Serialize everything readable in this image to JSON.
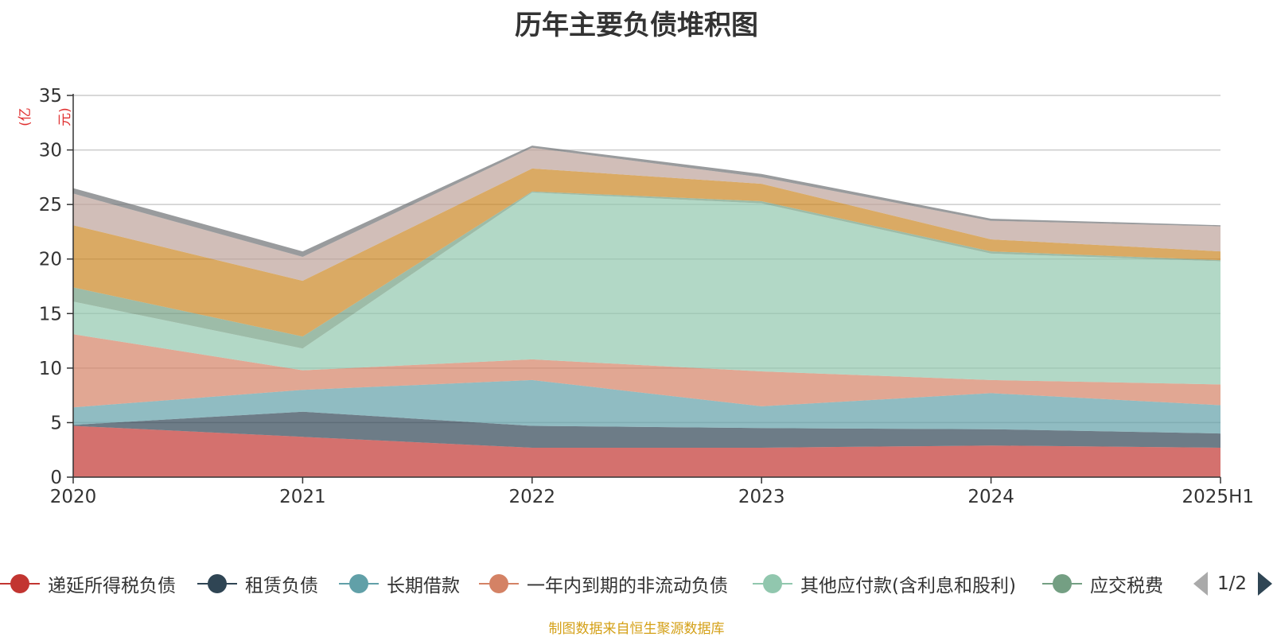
{
  "chart_data": {
    "type": "area",
    "title": "历年主要负债堆积图",
    "unit_label": "(亿元)",
    "categories": [
      "2020",
      "2021",
      "2022",
      "2023",
      "2024",
      "2025H1"
    ],
    "ylim": [
      0,
      35
    ],
    "y_ticks": [
      "0",
      "5",
      "10",
      "15",
      "20",
      "25",
      "30",
      "35"
    ],
    "grid": true,
    "stacked": true,
    "series": [
      {
        "name": "递延所得税负债",
        "color": "#c23531",
        "values": [
          4.7,
          3.7,
          2.7,
          2.7,
          2.9,
          2.7
        ]
      },
      {
        "name": "租赁负债",
        "color": "#2f4554",
        "values": [
          0.1,
          2.3,
          2.0,
          1.8,
          1.5,
          1.3
        ]
      },
      {
        "name": "长期借款",
        "color": "#61a0a8",
        "values": [
          1.6,
          2.0,
          4.2,
          2.0,
          3.3,
          2.6
        ]
      },
      {
        "name": "一年内到期的非流动负债",
        "color": "#d48265",
        "values": [
          6.7,
          1.8,
          1.9,
          3.2,
          1.2,
          1.9
        ]
      },
      {
        "name": "其他应付款(含利息和股利)",
        "color": "#91c7ae",
        "values": [
          3.0,
          2.0,
          15.3,
          15.4,
          11.6,
          11.3
        ]
      },
      {
        "name": "应交税费",
        "color": "#749f83",
        "values": [
          1.3,
          1.1,
          0.1,
          0.2,
          0.2,
          0.1
        ]
      },
      {
        "name": "",
        "color": "#ca8622",
        "values": [
          5.7,
          5.1,
          2.1,
          1.6,
          1.1,
          0.8
        ]
      },
      {
        "name": "",
        "color": "#bda29a",
        "values": [
          2.9,
          2.2,
          1.9,
          0.6,
          1.7,
          2.3
        ]
      },
      {
        "name": "",
        "color": "#6e7074",
        "values": [
          0.5,
          0.5,
          0.2,
          0.3,
          0.2,
          0.1
        ]
      }
    ]
  },
  "legend": {
    "items": [
      "递延所得税负债",
      "租赁负债",
      "长期借款",
      "一年内到期的非流动负债",
      "其他应付款(含利息和股利)",
      "应交税费"
    ],
    "colors": [
      "#c23531",
      "#2f4554",
      "#61a0a8",
      "#d48265",
      "#91c7ae",
      "#749f83"
    ],
    "page": "1/2"
  },
  "source": "制图数据来自恒生聚源数据库"
}
